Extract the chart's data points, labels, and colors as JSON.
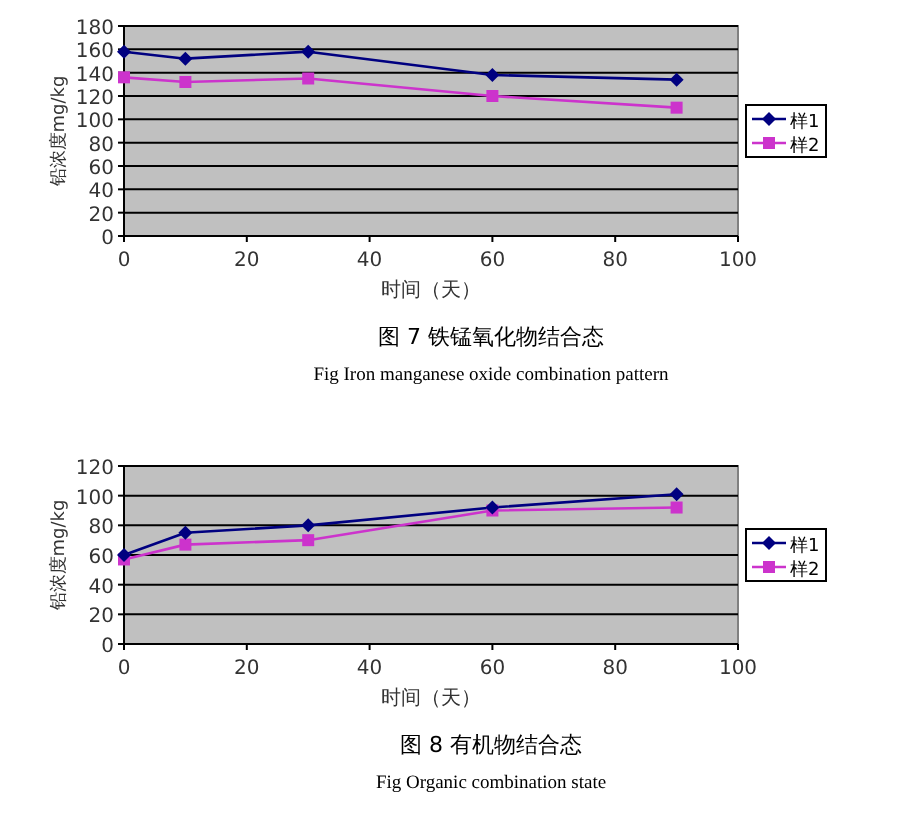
{
  "chart_data": [
    {
      "type": "line",
      "title": "图 7 铁锰氧化物结合态",
      "subtitle": "Fig    Iron manganese oxide combination pattern",
      "xlabel": "时间（天）",
      "ylabel": "铅浓度mg/kg",
      "x": [
        0,
        10,
        30,
        60,
        90
      ],
      "series": [
        {
          "name": "样1",
          "color": "#000080",
          "marker": "diamond",
          "values": [
            158,
            152,
            158,
            138,
            134
          ]
        },
        {
          "name": "样2",
          "color": "#cc33cc",
          "marker": "square",
          "values": [
            136,
            132,
            135,
            120,
            110
          ]
        }
      ],
      "xlim": [
        0,
        100
      ],
      "xticks": [
        0,
        20,
        40,
        60,
        80,
        100
      ],
      "ylim": [
        0,
        180
      ],
      "yticks": [
        0,
        20,
        40,
        60,
        80,
        100,
        120,
        140,
        160,
        180
      ],
      "grid": "y",
      "legend": "right"
    },
    {
      "type": "line",
      "title": "图 8 有机物结合态",
      "subtitle": "Fig    Organic combination state",
      "xlabel": "时间（天）",
      "ylabel": "铅浓度mg/kg",
      "x": [
        0,
        10,
        30,
        60,
        90
      ],
      "series": [
        {
          "name": "样1",
          "color": "#000080",
          "marker": "diamond",
          "values": [
            60,
            75,
            80,
            92,
            101
          ]
        },
        {
          "name": "样2",
          "color": "#cc33cc",
          "marker": "square",
          "values": [
            57,
            67,
            70,
            90,
            92
          ]
        }
      ],
      "xlim": [
        0,
        100
      ],
      "xticks": [
        0,
        20,
        40,
        60,
        80,
        100
      ],
      "ylim": [
        0,
        120
      ],
      "yticks": [
        0,
        20,
        40,
        60,
        80,
        100,
        120
      ],
      "grid": "y",
      "legend": "right"
    }
  ]
}
